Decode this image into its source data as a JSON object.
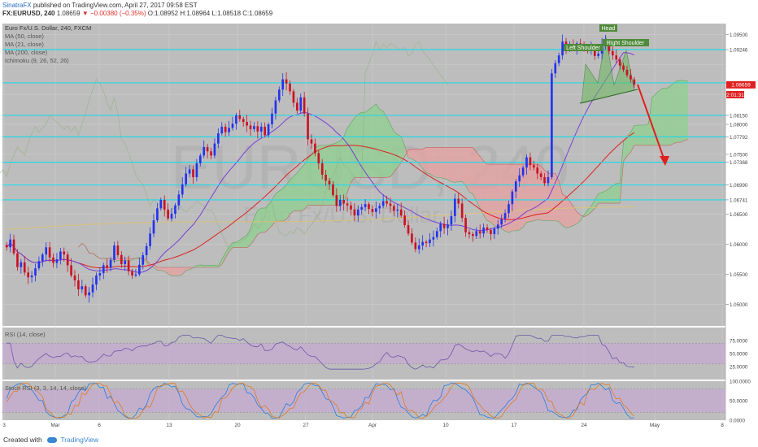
{
  "header": {
    "author": "SinatraFX",
    "published_text": "published on TradingView.com, April 27, 2017 09:58 EST",
    "symbol": "FX:EURUSD, 240",
    "last": "1.08659",
    "change": "▼ −0.00380 (−0.35%)",
    "ohlc": "O:1.08952 H:1.08964 L:1.08518 C:1.08659"
  },
  "legend": {
    "title": "Euro Fx/U.S. Dollar, 240, FXCM",
    "ma50": "MA (50, close)",
    "ma21": "MA (21, close)",
    "ma200": "MA (200, close)",
    "ichimoku": "Ichimoku (9, 26, 52, 26)"
  },
  "watermark": {
    "big": "EURUSD, 240",
    "sub": "Euro Fx/U.S. Dollar"
  },
  "annotations": {
    "head": "Head",
    "left_shoulder": "Left Shoulder",
    "right_shoulder": "Right Shoulder"
  },
  "colors": {
    "up_candle": "#2233ee",
    "down_candle": "#cc1122",
    "ma_red": "#dd2222",
    "ma_purple": "#7a3fd6",
    "ma_gold": "#d9c27a",
    "cloud_green": "#8fd08f",
    "cloud_red": "#e8a0a0",
    "level_line": "#22d8e6",
    "pattern_fill": "#6ab85e",
    "arrow": "#e02020"
  },
  "chart_data": [
    {
      "type": "candlestick",
      "symbol": "EURUSD",
      "timeframe": "240",
      "y_axis_ticks": [
        "1.09500",
        "1.09246",
        "1.08692",
        "1.08150",
        "1.08000",
        "1.07792",
        "1.07500",
        "1.07368",
        "1.06990",
        "1.06741",
        "1.06500",
        "1.06000",
        "1.05500",
        "1.05000"
      ],
      "horizontal_levels": [
        1.09246,
        1.08692,
        1.0815,
        1.07792,
        1.07368,
        1.0699,
        1.06741
      ],
      "price_marker": "1.08659",
      "countdown": "2:01:31",
      "ylim": [
        1.0464,
        1.0968
      ],
      "x_ticks": [
        "3",
        "Mar",
        "6",
        "13",
        "20",
        "27",
        "Apr",
        "10",
        "17",
        "24",
        "May",
        "8"
      ],
      "x_labels_note": "day labels under date axis",
      "closes": [
        1.0595,
        1.0608,
        1.0585,
        1.0562,
        1.057,
        1.0553,
        1.0545,
        1.0548,
        1.056,
        1.0572,
        1.0583,
        1.0595,
        1.0578,
        1.0569,
        1.0575,
        1.0588,
        1.0583,
        1.0565,
        1.0548,
        1.054,
        1.0525,
        1.053,
        1.0515,
        1.052,
        1.0533,
        1.0548,
        1.0552,
        1.0565,
        1.0561,
        1.0574,
        1.0598,
        1.0582,
        1.0567,
        1.0573,
        1.0555,
        1.0548,
        1.055,
        1.0566,
        1.0582,
        1.0597,
        1.0618,
        1.064,
        1.066,
        1.0674,
        1.0658,
        1.0643,
        1.0651,
        1.0665,
        1.0683,
        1.07,
        1.0718,
        1.0725,
        1.0712,
        1.0735,
        1.0748,
        1.0762,
        1.0755,
        1.0748,
        1.0768,
        1.0785,
        1.0796,
        1.0787,
        1.0794,
        1.0801,
        1.0815,
        1.0809,
        1.0804,
        1.0798,
        1.0792,
        1.0797,
        1.0788,
        1.0796,
        1.0782,
        1.08,
        1.0818,
        1.084,
        1.0858,
        1.0875,
        1.0868,
        1.0855,
        1.0836,
        1.0823,
        1.0845,
        1.0818,
        1.0775,
        1.0768,
        1.0752,
        1.0735,
        1.0716,
        1.0706,
        1.07,
        1.0682,
        1.0664,
        1.0674,
        1.0668,
        1.0665,
        1.0658,
        1.0648,
        1.0658,
        1.0662,
        1.0667,
        1.0659,
        1.0654,
        1.066,
        1.0664,
        1.0672,
        1.0668,
        1.0664,
        1.0656,
        1.0658,
        1.0648,
        1.0632,
        1.0618,
        1.0603,
        1.0592,
        1.0598,
        1.0604,
        1.0602,
        1.0608,
        1.0612,
        1.0622,
        1.0634,
        1.0627,
        1.0633,
        1.0647,
        1.0676,
        1.0668,
        1.0644,
        1.062,
        1.0617,
        1.0614,
        1.0622,
        1.0618,
        1.0628,
        1.0624,
        1.0617,
        1.0626,
        1.0633,
        1.0642,
        1.0652,
        1.0667,
        1.0688,
        1.0705,
        1.0715,
        1.0728,
        1.0745,
        1.0732,
        1.0728,
        1.0718,
        1.0712,
        1.0702,
        1.0712,
        1.0885,
        1.0902,
        1.0915,
        1.0938,
        1.0924,
        1.0934,
        1.0928,
        1.0935,
        1.0932,
        1.0926,
        1.0925,
        1.0928,
        1.0914,
        1.0918,
        1.0933,
        1.0938,
        1.0922,
        1.0915,
        1.0908,
        1.0898,
        1.0891,
        1.0882,
        1.0875,
        1.0866
      ],
      "projection_arrow": {
        "from_price": 1.08692,
        "to_price": 1.0735
      }
    },
    {
      "type": "line",
      "title": "RSI (14, close)",
      "y_axis_ticks": [
        "75.0000",
        "50.0000",
        "25.0000"
      ],
      "bands": [
        70,
        30
      ]
    },
    {
      "type": "line",
      "title": "Stoch RSI (3, 3, 14, 14, close)",
      "y_axis_ticks": [
        "100.0000",
        "50.0000",
        "0.0000"
      ],
      "bands": [
        80,
        20
      ]
    }
  ],
  "footer": {
    "created_with": "Created with",
    "brand": "TradingView"
  }
}
